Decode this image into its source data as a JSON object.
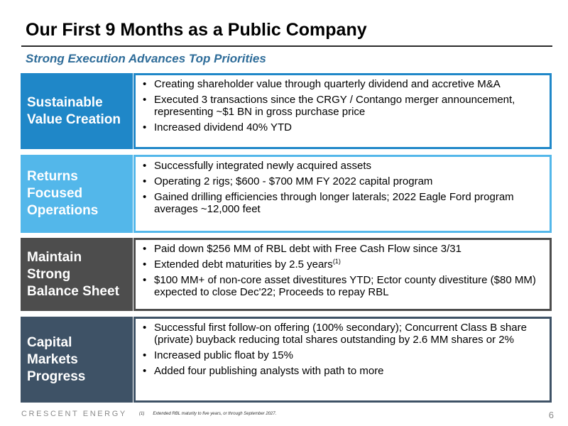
{
  "title": "Our First 9 Months as a Public Company",
  "subtitle": "Strong Execution Advances Top Priorities",
  "sections": [
    {
      "label_lines": [
        "Sustainable",
        "Value Creation"
      ],
      "bullets": [
        "Creating shareholder value through quarterly dividend and accretive M&A",
        "Executed 3 transactions since the CRGY / Contango merger announcement, representing ~$1 BN in gross purchase price",
        "Increased dividend 40% YTD"
      ]
    },
    {
      "label_lines": [
        "Returns",
        "Focused",
        "Operations"
      ],
      "bullets": [
        "Successfully integrated newly acquired assets",
        "Operating 2 rigs; $600 - $700 MM FY 2022 capital program",
        "Gained drilling efficiencies through longer laterals; 2022 Eagle Ford program averages ~12,000 feet"
      ]
    },
    {
      "label_lines": [
        "Maintain",
        "Strong",
        "Balance Sheet"
      ],
      "bullets": [
        "Paid down $256 MM of RBL debt with Free Cash Flow since 3/31",
        "Extended debt maturities by 2.5 years",
        "$100 MM+ of non-core asset divestitures YTD; Ector county divestiture ($80 MM) expected to close Dec'22; Proceeds to repay RBL"
      ],
      "footnote_ref": "(1)"
    },
    {
      "label_lines": [
        "Capital",
        "Markets",
        "Progress"
      ],
      "bullets": [
        "Successful first follow-on offering (100% secondary); Concurrent Class B share (private) buyback reducing total shares outstanding by 2.6 MM shares or 2%",
        "Increased public float by 15%",
        "Added four publishing analysts with path to more"
      ]
    }
  ],
  "footer": {
    "logo": "CRESCENT ENERGY",
    "footnote_num": "(1)",
    "footnote_text": "Extended RBL maturity to five years, or through September 2027.",
    "page_number": "6"
  }
}
